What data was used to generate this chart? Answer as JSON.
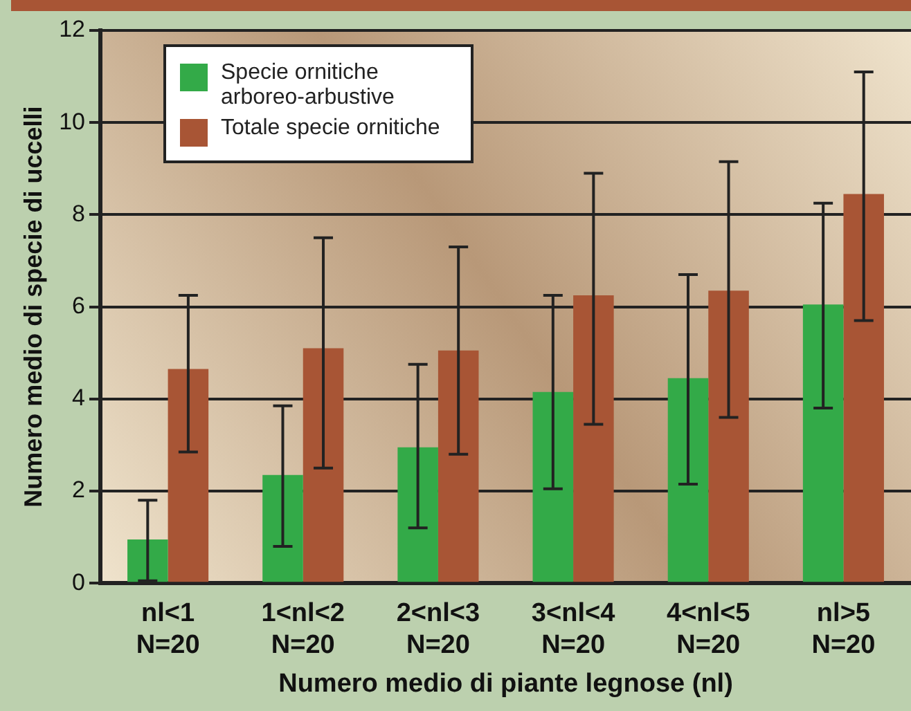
{
  "chart_data": {
    "type": "bar",
    "xlabel": "Numero medio di piante legnose (nl)",
    "ylabel": "Numero medio di specie di uccelli",
    "categories": [
      "nl<1\nN=20",
      "1<nl<2\nN=20",
      "2<nl<3\nN=20",
      "3<nl<4\nN=20",
      "4<nl<5\nN=20",
      "nl>5\nN=20"
    ],
    "series": [
      {
        "name": "Specie ornitiche arboreo-arbustive",
        "color": "#33aa48",
        "values": [
          0.95,
          2.35,
          2.95,
          4.15,
          4.45,
          6.05
        ],
        "errors": [
          [
            0.05,
            1.8
          ],
          [
            0.8,
            3.85
          ],
          [
            1.2,
            4.75
          ],
          [
            2.05,
            6.25
          ],
          [
            2.15,
            6.7
          ],
          [
            3.8,
            8.25
          ]
        ]
      },
      {
        "name": "Totale specie ornitiche",
        "color": "#a85535",
        "values": [
          4.65,
          5.1,
          5.05,
          6.25,
          6.35,
          8.45
        ],
        "errors": [
          [
            2.85,
            6.25
          ],
          [
            2.5,
            7.5
          ],
          [
            2.8,
            7.3
          ],
          [
            3.45,
            8.9
          ],
          [
            3.6,
            9.15
          ],
          [
            5.7,
            11.1
          ]
        ]
      }
    ],
    "ylim": [
      0,
      12
    ],
    "yticks": [
      0,
      2,
      4,
      6,
      8,
      10,
      12
    ],
    "grid": "y",
    "legend": "top left"
  }
}
